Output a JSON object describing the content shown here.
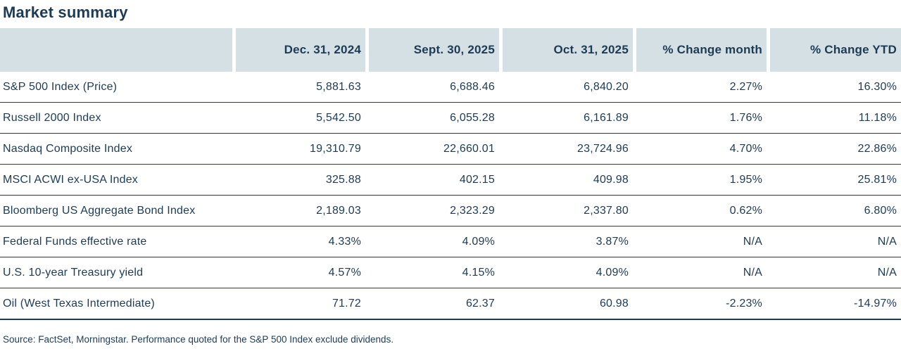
{
  "title": "Market summary",
  "table": {
    "columns": [
      "",
      "Dec. 31, 2024",
      "Sept. 30, 2025",
      "Oct. 31, 2025",
      "% Change month",
      "% Change YTD"
    ],
    "rows": [
      {
        "label": "S&P 500 Index (Price)",
        "values": [
          "5,881.63",
          "6,688.46",
          "6,840.20",
          "2.27%",
          "16.30%"
        ]
      },
      {
        "label": "Russell 2000 Index",
        "values": [
          "5,542.50",
          "6,055.28",
          "6,161.89",
          "1.76%",
          "11.18%"
        ]
      },
      {
        "label": "Nasdaq Composite Index",
        "values": [
          "19,310.79",
          "22,660.01",
          "23,724.96",
          "4.70%",
          "22.86%"
        ]
      },
      {
        "label": "MSCI ACWI ex-USA Index",
        "values": [
          "325.88",
          "402.15",
          "409.98",
          "1.95%",
          "25.81%"
        ]
      },
      {
        "label": "Bloomberg US Aggregate Bond Index",
        "values": [
          "2,189.03",
          "2,323.29",
          "2,337.80",
          "0.62%",
          "6.80%"
        ]
      },
      {
        "label": "Federal Funds effective rate",
        "values": [
          "4.33%",
          "4.09%",
          "3.87%",
          "N/A",
          "N/A"
        ]
      },
      {
        "label": "U.S. 10-year Treasury yield",
        "values": [
          "4.57%",
          "4.15%",
          "4.09%",
          "N/A",
          "N/A"
        ]
      },
      {
        "label": "Oil (West Texas Intermediate)",
        "values": [
          "71.72",
          "62.37",
          "60.98",
          "-2.23%",
          "-14.97%"
        ]
      }
    ]
  },
  "footer": {
    "source": "Source: FactSet, Morningstar. Performance quoted for the S&P 500 Index exclude dividends."
  },
  "colors": {
    "navy_text": "#1d3b55",
    "header_background": "#d4e0e3",
    "row_divider": "#1d3b55",
    "page_background": "#ffffff"
  },
  "chart_data": {
    "type": "table",
    "title": "Market summary",
    "columns": [
      "Dec. 31, 2024",
      "Sept. 30, 2025",
      "Oct. 31, 2025",
      "% Change month",
      "% Change YTD"
    ],
    "rows": [
      {
        "name": "S&P 500 Index (Price)",
        "dec_31_2024": 5881.63,
        "sept_30_2025": 6688.46,
        "oct_31_2025": 6840.2,
        "pct_change_month": 2.27,
        "pct_change_ytd": 16.3
      },
      {
        "name": "Russell 2000 Index",
        "dec_31_2024": 5542.5,
        "sept_30_2025": 6055.28,
        "oct_31_2025": 6161.89,
        "pct_change_month": 1.76,
        "pct_change_ytd": 11.18
      },
      {
        "name": "Nasdaq Composite Index",
        "dec_31_2024": 19310.79,
        "sept_30_2025": 22660.01,
        "oct_31_2025": 23724.96,
        "pct_change_month": 4.7,
        "pct_change_ytd": 22.86
      },
      {
        "name": "MSCI ACWI ex-USA Index",
        "dec_31_2024": 325.88,
        "sept_30_2025": 402.15,
        "oct_31_2025": 409.98,
        "pct_change_month": 1.95,
        "pct_change_ytd": 25.81
      },
      {
        "name": "Bloomberg US Aggregate Bond Index",
        "dec_31_2024": 2189.03,
        "sept_30_2025": 2323.29,
        "oct_31_2025": 2337.8,
        "pct_change_month": 0.62,
        "pct_change_ytd": 6.8
      },
      {
        "name": "Federal Funds effective rate",
        "dec_31_2024": "4.33%",
        "sept_30_2025": "4.09%",
        "oct_31_2025": "3.87%",
        "pct_change_month": null,
        "pct_change_ytd": null
      },
      {
        "name": "U.S. 10-year Treasury yield",
        "dec_31_2024": "4.57%",
        "sept_30_2025": "4.15%",
        "oct_31_2025": "4.09%",
        "pct_change_month": null,
        "pct_change_ytd": null
      },
      {
        "name": "Oil (West Texas Intermediate)",
        "dec_31_2024": 71.72,
        "sept_30_2025": 62.37,
        "oct_31_2025": 60.98,
        "pct_change_month": -2.23,
        "pct_change_ytd": -14.97
      }
    ],
    "footnote": "Source: FactSet, Morningstar. Performance quoted for the S&P 500 Index exclude dividends."
  }
}
